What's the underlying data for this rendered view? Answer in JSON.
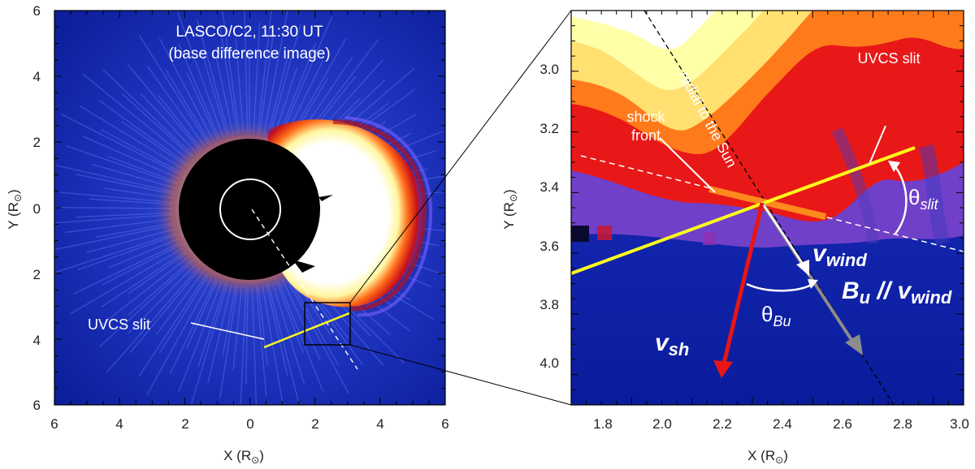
{
  "left_panel": {
    "title_line1": "LASCO/C2, 11:30 UT",
    "title_line2": "(base difference image)",
    "slit_label": "UVCS slit",
    "x_axis_label": "X (R",
    "y_axis_label": "Y (R",
    "x_ticks": [
      "6",
      "4",
      "2",
      "0",
      "2",
      "4",
      "6"
    ],
    "y_ticks": [
      "6",
      "4",
      "2",
      "0",
      "2",
      "4",
      "6"
    ]
  },
  "right_panel": {
    "label_radial": "radial to the Sun",
    "label_slit": "UVCS slit",
    "label_shock_line1": "shock",
    "label_shock_line2": "front",
    "theta_slit_symbol": "θ",
    "theta_slit_sub": "slit",
    "theta_bu_symbol": "θ",
    "theta_bu_sub": "Bu",
    "v_wind_symbol": "v",
    "v_wind_sub": "wind",
    "bu_symbol": "B",
    "bu_sub": "u",
    "bu_parallel": " // ",
    "v_wind2_symbol": "v",
    "v_wind2_sub": "wind",
    "v_sh_symbol": "v",
    "v_sh_sub": "sh",
    "x_axis_label": "X (R",
    "y_axis_label": "Y (R",
    "x_ticks": [
      "1.8",
      "2.0",
      "2.2",
      "2.4",
      "2.6",
      "2.8",
      "3.0"
    ],
    "y_ticks": [
      "3.0",
      "3.2",
      "3.4",
      "3.6",
      "3.8",
      "4.0"
    ]
  },
  "sun_symbol": "⊙",
  "colors": {
    "background_blue": "#0c22a8",
    "slit_yellow": "#ffff1a",
    "shock_orange": "#ff8a1c",
    "v_sh_red": "#e81515",
    "b_u_gray": "#8c8c8c"
  }
}
